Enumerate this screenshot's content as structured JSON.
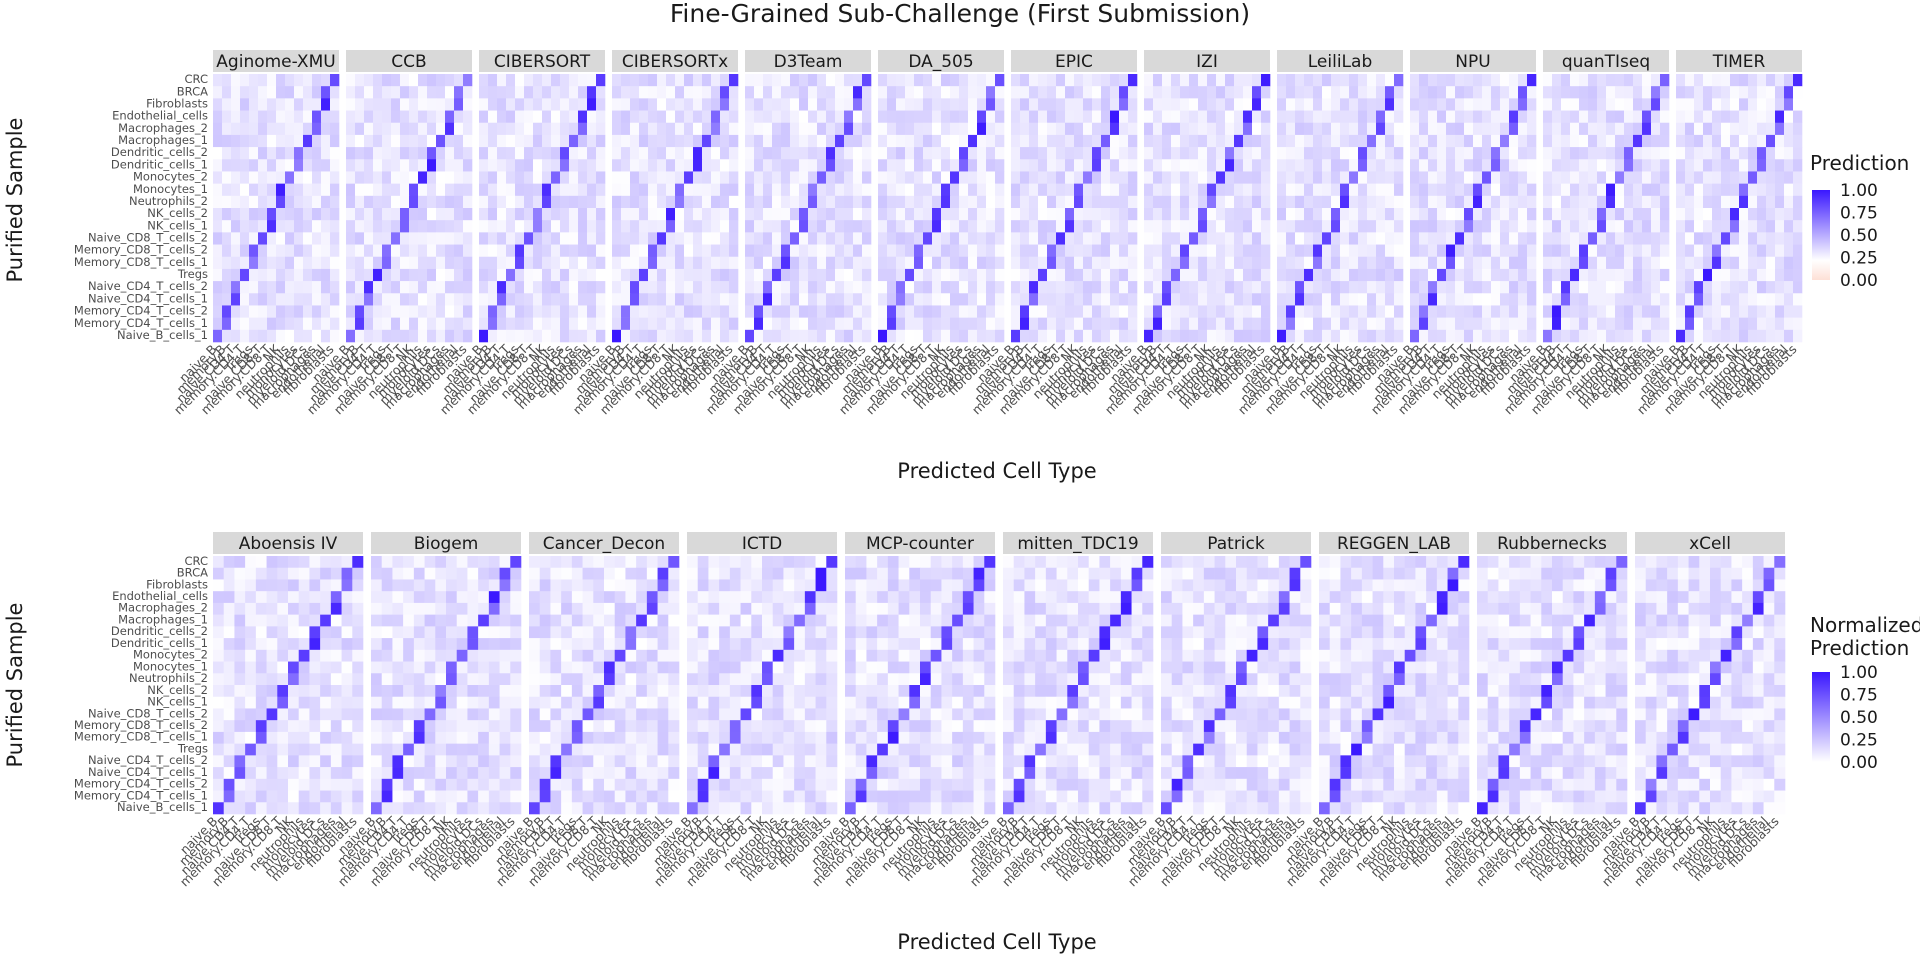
{
  "title": "Fine-Grained Sub-Challenge (First Submission)",
  "panels": [
    {
      "xlabel": "Predicted Cell Type",
      "ylabel": "Purified Sample",
      "legend": {
        "title": [
          "Prediction"
        ],
        "ticks": [
          "1.00",
          "0.75",
          "0.50",
          "0.25",
          "0.00"
        ],
        "low_color": "#fde0d6",
        "mid_color": "#ffffff",
        "high_color": "#3a17ff"
      },
      "teams": [
        "Aginome-XMU",
        "CCB",
        "CIBERSORT",
        "CIBERSORTx",
        "D3Team",
        "DA_505",
        "EPIC",
        "IZI",
        "LeiliLab",
        "NPU",
        "quanTIseq",
        "TIMER"
      ]
    },
    {
      "xlabel": "Predicted Cell Type",
      "ylabel": "Purified Sample",
      "legend": {
        "title": [
          "Normalized",
          "Prediction"
        ],
        "ticks": [
          "1.00",
          "0.75",
          "0.50",
          "0.25",
          "0.00"
        ],
        "low_color": "#ffffff",
        "high_color": "#3a17ff"
      },
      "teams": [
        "Aboensis IV",
        "Biogem",
        "Cancer_Decon",
        "ICTD",
        "MCP-counter",
        "mitten_TDC19",
        "Patrick",
        "REGGEN_LAB",
        "Rubbernecks",
        "xCell"
      ]
    }
  ],
  "row_labels": [
    "CRC",
    "BRCA",
    "Fibroblasts",
    "Endothelial_cells",
    "Macrophages_2",
    "Macrophages_1",
    "Dendritic_cells_2",
    "Dendritic_cells_1",
    "Monocytes_2",
    "Monocytes_1",
    "Neutrophils_2",
    "NK_cells_2",
    "NK_cells_1",
    "Naive_CD8_T_cells_2",
    "Memory_CD8_T_cells_2",
    "Memory_CD8_T_cells_1",
    "Tregs",
    "Naive_CD4_T_cells_2",
    "Naive_CD4_T_cells_1",
    "Memory_CD4_T_cells_2",
    "Memory_CD4_T_cells_1",
    "Naive_B_cells_1"
  ],
  "col_labels": [
    "naive.B",
    "memory.B",
    "naive.CD4.T",
    "memory.CD4.T",
    "Tregs",
    "naive.CD8.T",
    "memory.CD8.T",
    "NK",
    "neutrophils",
    "monocytes",
    "myeloid.DCs",
    "macrophages",
    "endothelial",
    "fibroblasts"
  ],
  "chart_data": [
    {
      "type": "heatmap",
      "title": "Fine-Grained Sub-Challenge (First Submission)",
      "xlabel": "Predicted Cell Type",
      "ylabel": "Purified Sample",
      "legend_title": "Prediction",
      "legend_range": [
        0,
        1
      ],
      "legend_ticks": [
        0,
        0.25,
        0.5,
        0.75,
        1
      ],
      "facets": [
        "Aginome-XMU",
        "CCB",
        "CIBERSORT",
        "CIBERSORTx",
        "D3Team",
        "DA_505",
        "EPIC",
        "IZI",
        "LeiliLab",
        "NPU",
        "quanTIseq",
        "TIMER"
      ],
      "x_categories": [
        "naive.B",
        "memory.B",
        "naive.CD4.T",
        "memory.CD4.T",
        "Tregs",
        "naive.CD8.T",
        "memory.CD8.T",
        "NK",
        "neutrophils",
        "monocytes",
        "myeloid.DCs",
        "macrophages",
        "endothelial",
        "fibroblasts"
      ],
      "y_categories": [
        "CRC",
        "BRCA",
        "Fibroblasts",
        "Endothelial_cells",
        "Macrophages_2",
        "Macrophages_1",
        "Dendritic_cells_2",
        "Dendritic_cells_1",
        "Monocytes_2",
        "Monocytes_1",
        "Neutrophils_2",
        "NK_cells_2",
        "NK_cells_1",
        "Naive_CD8_T_cells_2",
        "Memory_CD8_T_cells_2",
        "Memory_CD8_T_cells_1",
        "Tregs",
        "Naive_CD4_T_cells_2",
        "Naive_CD4_T_cells_1",
        "Memory_CD4_T_cells_2",
        "Memory_CD4_T_cells_1",
        "Naive_B_cells_1"
      ]
    },
    {
      "type": "heatmap",
      "xlabel": "Predicted Cell Type",
      "ylabel": "Purified Sample",
      "legend_title": "Normalized Prediction",
      "legend_range": [
        0,
        1
      ],
      "legend_ticks": [
        0,
        0.25,
        0.5,
        0.75,
        1
      ],
      "facets": [
        "Aboensis IV",
        "Biogem",
        "Cancer_Decon",
        "ICTD",
        "MCP-counter",
        "mitten_TDC19",
        "Patrick",
        "REGGEN_LAB",
        "Rubbernecks",
        "xCell"
      ],
      "x_categories": [
        "naive.B",
        "memory.B",
        "naive.CD4.T",
        "memory.CD4.T",
        "Tregs",
        "naive.CD8.T",
        "memory.CD8.T",
        "NK",
        "neutrophils",
        "monocytes",
        "myeloid.DCs",
        "macrophages",
        "endothelial",
        "fibroblasts"
      ],
      "y_categories": [
        "CRC",
        "BRCA",
        "Fibroblasts",
        "Endothelial_cells",
        "Macrophages_2",
        "Macrophages_1",
        "Dendritic_cells_2",
        "Dendritic_cells_1",
        "Monocytes_2",
        "Monocytes_1",
        "Neutrophils_2",
        "NK_cells_2",
        "NK_cells_1",
        "Naive_CD8_T_cells_2",
        "Memory_CD8_T_cells_2",
        "Memory_CD8_T_cells_1",
        "Tregs",
        "Naive_CD4_T_cells_2",
        "Naive_CD4_T_cells_1",
        "Memory_CD4_T_cells_2",
        "Memory_CD4_T_cells_1",
        "Naive_B_cells_1"
      ]
    }
  ]
}
